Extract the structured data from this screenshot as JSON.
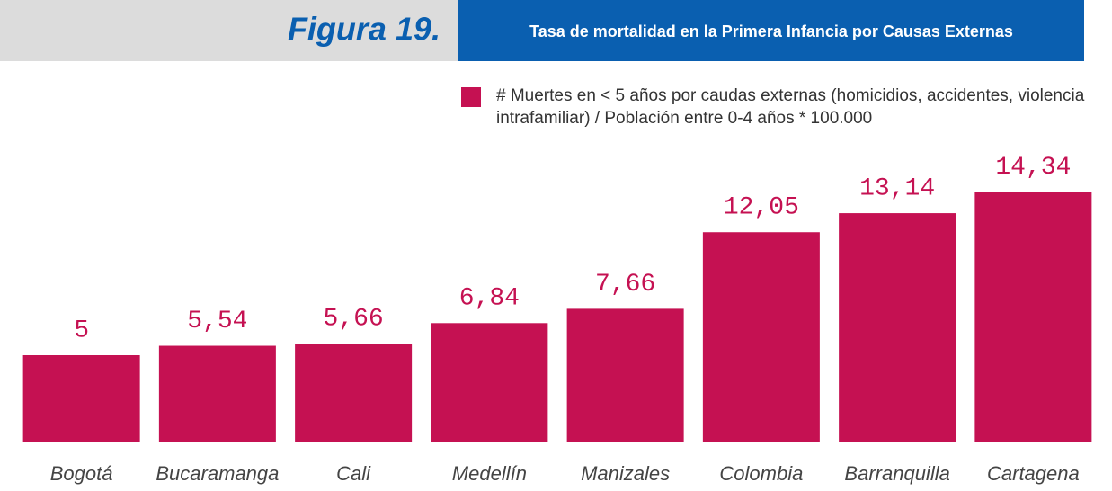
{
  "chart_data": {
    "type": "bar",
    "figure_label": "Figura 19.",
    "title": "Tasa de mortalidad en la Primera Infancia por Causas Externas",
    "categories": [
      "Bogotá",
      "Bucaramanga",
      "Cali",
      "Medellín",
      "Manizales",
      "Colombia",
      "Barranquilla",
      "Cartagena"
    ],
    "series": [
      {
        "name": "# Muertes en < 5 años por caudas externas (homicidios, accidentes, violencia intrafamiliar) / Población entre 0-4 años * 100.000",
        "color": "#c51152",
        "values": [
          5,
          5.54,
          5.66,
          6.84,
          7.66,
          12.05,
          13.14,
          14.34
        ],
        "value_labels": [
          "5",
          "5,54",
          "5,66",
          "6,84",
          "7,66",
          "12,05",
          "13,14",
          "14,34"
        ]
      }
    ]
  }
}
